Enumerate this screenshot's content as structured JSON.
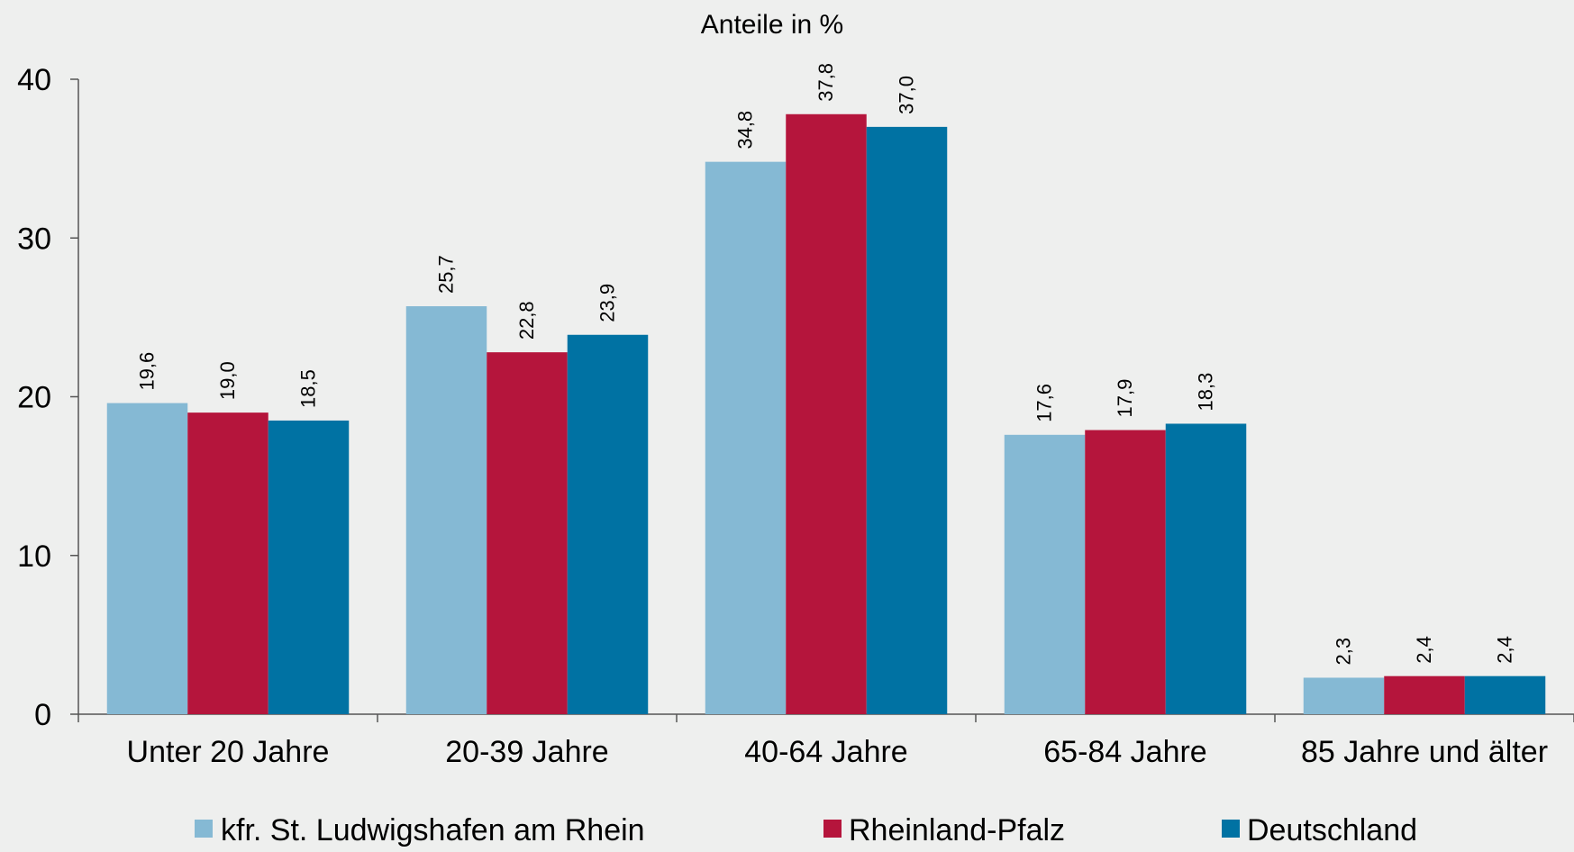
{
  "chart_data": {
    "type": "bar",
    "title": "Anteile in %",
    "categories": [
      "Unter 20 Jahre",
      "20-39 Jahre",
      "40-64 Jahre",
      "65-84 Jahre",
      "85 Jahre und älter"
    ],
    "series": [
      {
        "name": "kfr. St. Ludwigshafen am Rhein",
        "color": "#85b9d4",
        "values": [
          19.6,
          25.7,
          34.8,
          17.6,
          2.3
        ],
        "labels": [
          "19,6",
          "25,7",
          "34,8",
          "17,6",
          "2,3"
        ]
      },
      {
        "name": "Rheinland-Pfalz",
        "color": "#b5153c",
        "values": [
          19.0,
          22.8,
          37.8,
          17.9,
          2.4
        ],
        "labels": [
          "19,0",
          "22,8",
          "37,8",
          "17,9",
          "2,4"
        ]
      },
      {
        "name": "Deutschland",
        "color": "#0072a3",
        "values": [
          18.5,
          23.9,
          37.0,
          18.3,
          2.4
        ],
        "labels": [
          "18,5",
          "23,9",
          "37,0",
          "18,3",
          "2,4"
        ]
      }
    ],
    "ylim": [
      0,
      40
    ],
    "yticks": [
      0,
      10,
      20,
      30,
      40
    ],
    "ytick_labels": [
      "0",
      "10",
      "20",
      "30",
      "40"
    ],
    "xlabel": "",
    "ylabel": "",
    "grid": false,
    "legend_position": "bottom"
  }
}
